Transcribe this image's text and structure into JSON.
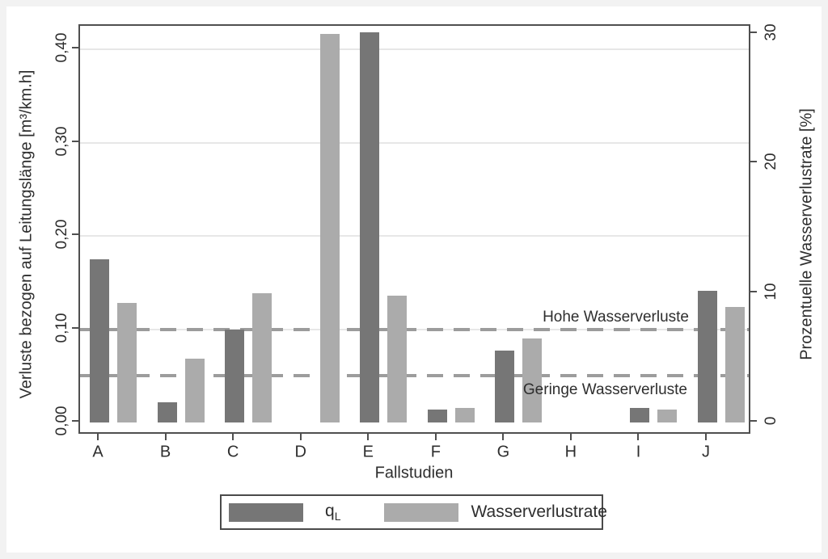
{
  "chart_data": {
    "type": "bar",
    "title": "",
    "xlabel": "Fallstudien",
    "categories": [
      "A",
      "B",
      "C",
      "D",
      "E",
      "F",
      "G",
      "H",
      "I",
      "J"
    ],
    "series": [
      {
        "name": "qL",
        "axis": "left",
        "color": "#767676",
        "values": [
          0.175,
          0.022,
          0.1,
          null,
          0.418,
          0.014,
          0.077,
          null,
          0.016,
          0.141
        ]
      },
      {
        "name": "Wasserverlustrate",
        "axis": "right",
        "color": "#ababab",
        "values": [
          9.2,
          4.9,
          10.0,
          30.0,
          9.8,
          1.1,
          6.5,
          null,
          1.0,
          8.9
        ]
      }
    ],
    "left_axis": {
      "label": "Verluste bezogen auf Leitungslänge [m³/km.h]",
      "tick_labels": [
        "0,00",
        "0,10",
        "0,20",
        "0,30",
        "0,40"
      ],
      "tick_values": [
        0,
        0.1,
        0.2,
        0.3,
        0.4
      ],
      "ylim": [
        0,
        0.428
      ]
    },
    "right_axis": {
      "label": "Prozentuelle Wasserverlustrate [%]",
      "tick_labels": [
        "0",
        "10",
        "20",
        "30"
      ],
      "tick_values": [
        0,
        10,
        20,
        30
      ],
      "ylim": [
        0,
        30.6
      ]
    },
    "reference_lines": [
      {
        "axis": "left",
        "value": 0.1,
        "label": "Hohe Wasserverluste"
      },
      {
        "axis": "left",
        "value": 0.05,
        "label": "Geringe Wasserverluste"
      }
    ],
    "legend": [
      {
        "label": "q",
        "subscript": "L"
      },
      {
        "label": "Wasserverlustrate",
        "subscript": ""
      }
    ],
    "grid": "horizontal, at left-axis ticks",
    "legend_position": "bottom-center"
  }
}
